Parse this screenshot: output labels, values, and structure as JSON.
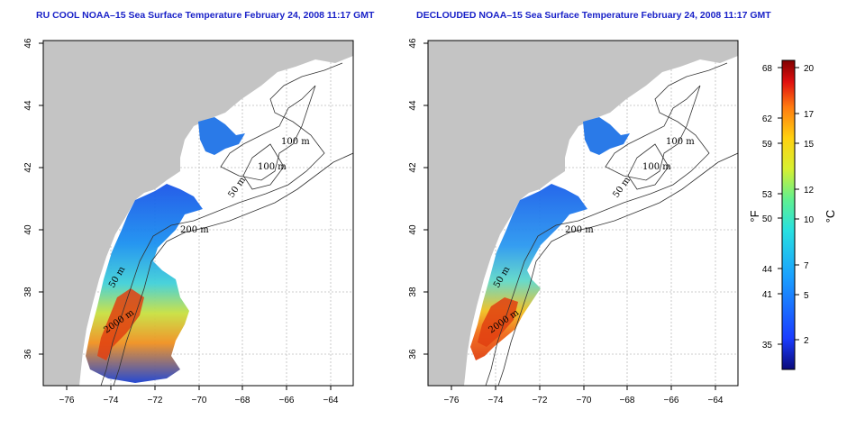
{
  "panels": [
    {
      "title": "RU COOL NOAA–15 Sea Surface Temperature February 24, 2008 11:17 GMT",
      "contour_labels": [
        "100 m",
        "100 m",
        "50 m",
        "200 m",
        "50 m",
        "2000 m"
      ]
    },
    {
      "title": "DECLOUDED NOAA–15 Sea Surface Temperature February 24, 2008 11:17 GMT",
      "contour_labels": [
        "100 m",
        "100 m",
        "50 m",
        "200 m",
        "50 m",
        "2000 m"
      ]
    }
  ],
  "axes": {
    "x_ticks": [
      "−76",
      "−74",
      "−72",
      "−70",
      "−68",
      "−66",
      "−64"
    ],
    "y_ticks": [
      "36",
      "38",
      "40",
      "42",
      "44",
      "46"
    ]
  },
  "colorbar": {
    "fahrenheit_label": "°F",
    "celsius_label": "°C",
    "fahrenheit_ticks": [
      "68",
      "62",
      "59",
      "53",
      "50",
      "44",
      "41",
      "35"
    ],
    "celsius_ticks": [
      "20",
      "17",
      "15",
      "12",
      "10",
      "7",
      "5",
      "2"
    ]
  },
  "colors": {
    "land": "#c4c4c4",
    "ocean": "#ffffff",
    "title": "#1a22c8"
  }
}
